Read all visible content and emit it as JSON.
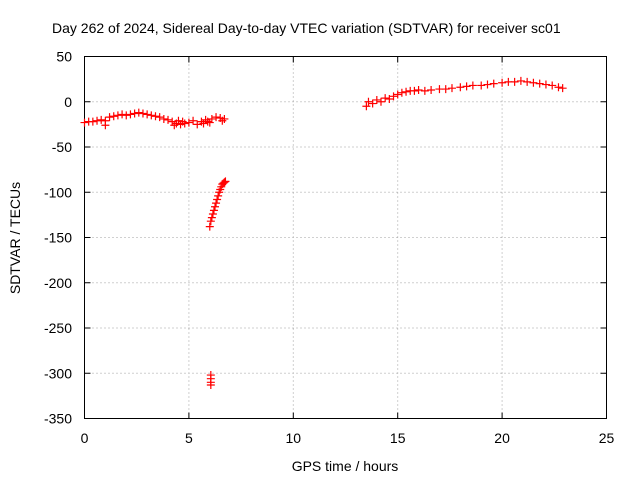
{
  "chart_data": {
    "type": "scatter",
    "title": "Day 262 of 2024, Sidereal Day-to-day VTEC variation (SDTVAR) for receiver sc01",
    "xlabel": "GPS time / hours",
    "ylabel": "SDTVAR / TECUs",
    "xlim": [
      0,
      25
    ],
    "ylim": [
      -350,
      50
    ],
    "xticks": [
      0,
      5,
      10,
      15,
      20,
      25
    ],
    "yticks": [
      50,
      0,
      -50,
      -100,
      -150,
      -200,
      -250,
      -300,
      -350
    ],
    "xtick_labels": [
      "0",
      "5",
      "10",
      "15",
      "20",
      "25"
    ],
    "ytick_labels": [
      "50",
      "0",
      "-50",
      "-100",
      "-150",
      "-200",
      "-250",
      "-300",
      "-350"
    ],
    "grid": true,
    "marker": "+",
    "color": "#ff0000",
    "series": [
      {
        "name": "sc01",
        "x": [
          0.0,
          0.2,
          0.4,
          0.6,
          0.8,
          1.0,
          1.0,
          1.2,
          1.4,
          1.6,
          1.8,
          2.0,
          2.2,
          2.4,
          2.6,
          2.8,
          3.0,
          3.2,
          3.4,
          3.6,
          3.8,
          4.0,
          4.2,
          4.3,
          4.4,
          4.5,
          4.6,
          4.7,
          4.8,
          5.0,
          5.2,
          5.4,
          5.6,
          5.7,
          5.8,
          5.9,
          6.0,
          6.1,
          6.3,
          6.5,
          6.6,
          6.7,
          6.0,
          6.05,
          6.1,
          6.15,
          6.2,
          6.25,
          6.3,
          6.35,
          6.4,
          6.45,
          6.5,
          6.55,
          6.6,
          6.65,
          6.7,
          6.75,
          6.05,
          6.05,
          6.05,
          6.05,
          13.5,
          13.6,
          13.8,
          14.0,
          14.2,
          14.4,
          14.6,
          14.8,
          15.0,
          15.2,
          15.4,
          15.6,
          15.8,
          16.0,
          16.3,
          16.6,
          17.0,
          17.3,
          17.6,
          18.0,
          18.3,
          18.6,
          19.0,
          19.3,
          19.6,
          20.0,
          20.3,
          20.6,
          20.9,
          21.2,
          21.5,
          21.8,
          22.1,
          22.4,
          22.7,
          22.9
        ],
        "y": [
          -23,
          -22,
          -22,
          -21,
          -20,
          -21,
          -26,
          -17,
          -16,
          -15,
          -14,
          -15,
          -14,
          -13,
          -12,
          -13,
          -14,
          -15,
          -16,
          -17,
          -19,
          -20,
          -22,
          -26,
          -24,
          -21,
          -25,
          -22,
          -24,
          -23,
          -21,
          -25,
          -22,
          -24,
          -20,
          -22,
          -23,
          -19,
          -17,
          -18,
          -21,
          -19,
          -138,
          -132,
          -128,
          -124,
          -120,
          -116,
          -112,
          -108,
          -104,
          -100,
          -97,
          -94,
          -91,
          -90,
          -89,
          -88,
          -302,
          -306,
          -310,
          -313,
          -5,
          0,
          -2,
          2,
          0,
          4,
          3,
          6,
          8,
          10,
          11,
          12,
          12,
          13,
          12,
          13,
          14,
          14,
          15,
          16,
          17,
          18,
          18,
          19,
          20,
          21,
          22,
          22,
          23,
          22,
          21,
          20,
          19,
          18,
          16,
          15
        ]
      }
    ]
  }
}
